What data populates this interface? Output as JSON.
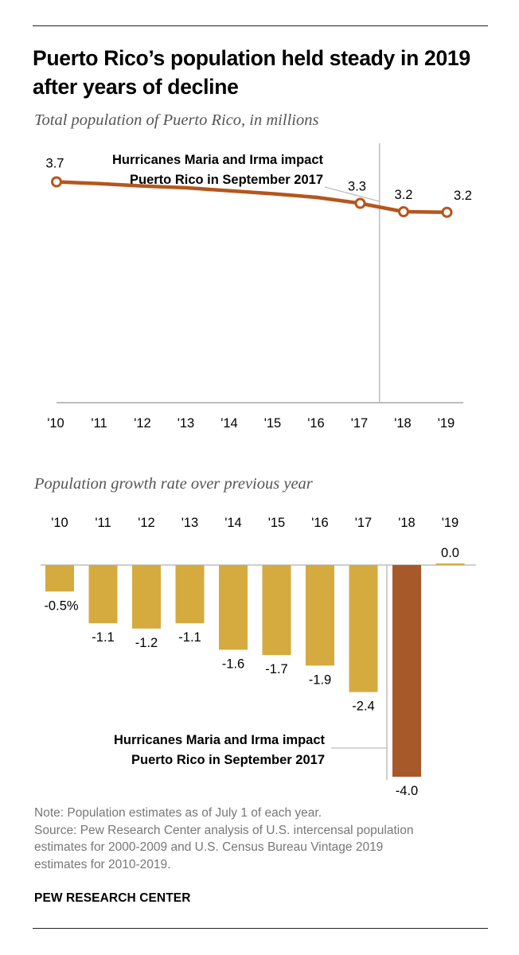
{
  "title": "Puerto Rico’s population held steady in 2019 after years of decline",
  "colors": {
    "line": "#b5561c",
    "bar": "#d5aa3e",
    "bar_highlight": "#a8592a",
    "axis": "#bdbdbd",
    "note_text": "#777777"
  },
  "chart_data": [
    {
      "type": "line",
      "title": "Total population of Puerto Rico, in millions",
      "x": [
        "'10",
        "'11",
        "'12",
        "'13",
        "'14",
        "'15",
        "'16",
        "'17",
        "'18",
        "'19"
      ],
      "series": [
        {
          "values": [
            3.7,
            3.67,
            3.63,
            3.6,
            3.55,
            3.5,
            3.44,
            3.34,
            3.2,
            3.19
          ]
        }
      ],
      "point_labels": [
        {
          "index": 0,
          "label": "3.7"
        },
        {
          "index": 7,
          "label": "3.3"
        },
        {
          "index": 8,
          "label": "3.2"
        },
        {
          "index": 9,
          "label": "3.2"
        }
      ],
      "ylim": [
        0,
        4
      ],
      "grid": false,
      "annotation": {
        "lines": [
          "Hurricanes Maria and Irma impact",
          "Puerto Rico in September 2017"
        ],
        "marker_between": [
          "'17",
          "'18"
        ]
      }
    },
    {
      "type": "bar",
      "title": "Population growth rate over previous year",
      "categories": [
        "'10",
        "'11",
        "'12",
        "'13",
        "'14",
        "'15",
        "'16",
        "'17",
        "'18",
        "'19"
      ],
      "values": [
        -0.5,
        -1.1,
        -1.2,
        -1.1,
        -1.6,
        -1.7,
        -1.9,
        -2.4,
        -4.0,
        0.0
      ],
      "value_labels": [
        "-0.5%",
        "-1.1",
        "-1.2",
        "-1.1",
        "-1.6",
        "-1.7",
        "-1.9",
        "-2.4",
        "-4.0",
        "0.0"
      ],
      "highlight_index": 8,
      "ylim": [
        -4.0,
        0.1
      ],
      "grid": false,
      "annotation": {
        "lines": [
          "Hurricanes Maria and Irma impact",
          "Puerto Rico in September 2017"
        ]
      }
    }
  ],
  "notes": {
    "note": "Note: Population estimates as of July 1 of each year.",
    "source_lines": [
      "Source: Pew Research Center analysis of U.S. intercensal population",
      "estimates for 2000-2009 and U.S. Census Bureau Vintage 2019",
      "estimates for 2010-2019."
    ]
  },
  "credit": "PEW RESEARCH CENTER"
}
